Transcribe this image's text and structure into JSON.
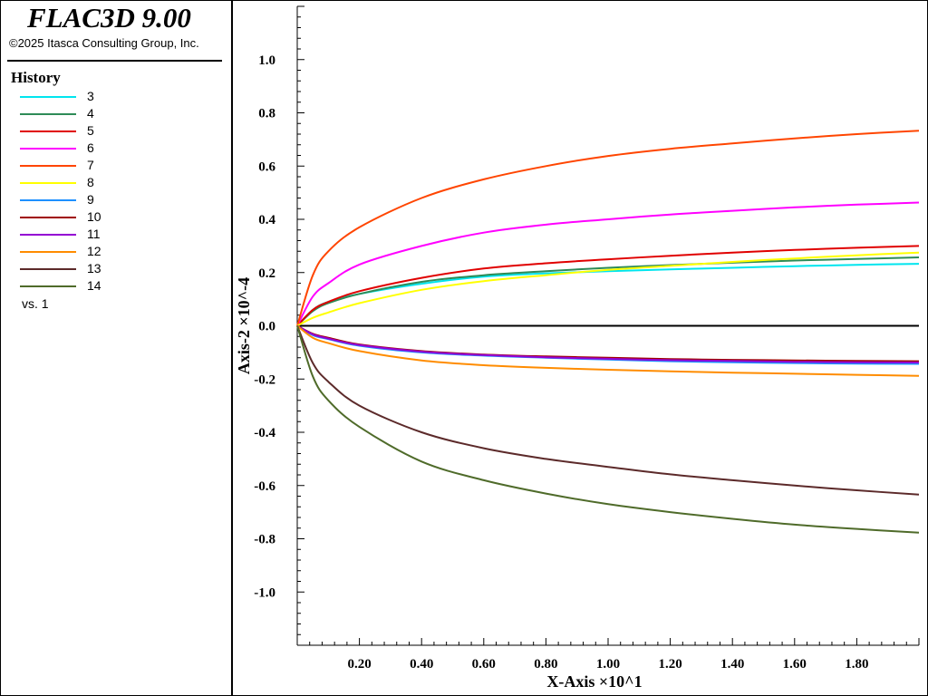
{
  "app": {
    "title": "FLAC3D 9.00",
    "copyright": "©2025 Itasca Consulting Group, Inc."
  },
  "legend": {
    "heading": "History",
    "vs_label": "vs. 1"
  },
  "chart_data": {
    "type": "line",
    "xlabel": "X-Axis ×10^1",
    "ylabel": "Axis-2 ×10^-4",
    "xlim": [
      0,
      2.0
    ],
    "ylim": [
      -1.2,
      1.2
    ],
    "x_ticks": [
      "0.20",
      "0.40",
      "0.60",
      "0.80",
      "1.00",
      "1.20",
      "1.40",
      "1.60",
      "1.80"
    ],
    "y_ticks": [
      "1.0",
      "0.8",
      "0.6",
      "0.4",
      "0.2",
      "0.0",
      "-0.2",
      "-0.4",
      "-0.6",
      "-0.8",
      "-1.0"
    ],
    "zero_line": true,
    "grid": false,
    "x": [
      0.0,
      0.05,
      0.1,
      0.2,
      0.4,
      0.6,
      0.8,
      1.0,
      1.2,
      1.4,
      1.6,
      1.8,
      2.0
    ],
    "series": [
      {
        "name": "3",
        "color": "#00e5ee",
        "values": [
          0,
          0.06,
          0.09,
          0.12,
          0.158,
          0.185,
          0.197,
          0.205,
          0.212,
          0.218,
          0.224,
          0.229,
          0.233
        ]
      },
      {
        "name": "4",
        "color": "#2e8b57",
        "values": [
          0,
          0.055,
          0.085,
          0.12,
          0.165,
          0.19,
          0.205,
          0.218,
          0.228,
          0.237,
          0.245,
          0.251,
          0.257
        ]
      },
      {
        "name": "5",
        "color": "#e00000",
        "values": [
          0,
          0.06,
          0.09,
          0.13,
          0.18,
          0.215,
          0.235,
          0.25,
          0.263,
          0.275,
          0.285,
          0.293,
          0.3
        ]
      },
      {
        "name": "6",
        "color": "#ff00ff",
        "values": [
          0,
          0.11,
          0.16,
          0.23,
          0.3,
          0.35,
          0.38,
          0.4,
          0.418,
          0.432,
          0.445,
          0.455,
          0.463
        ]
      },
      {
        "name": "7",
        "color": "#ff4500",
        "values": [
          0,
          0.19,
          0.28,
          0.37,
          0.48,
          0.55,
          0.6,
          0.638,
          0.665,
          0.685,
          0.704,
          0.72,
          0.733
        ]
      },
      {
        "name": "8",
        "color": "#ffff00",
        "values": [
          0,
          0.03,
          0.05,
          0.085,
          0.135,
          0.168,
          0.19,
          0.21,
          0.225,
          0.24,
          0.253,
          0.265,
          0.275
        ]
      },
      {
        "name": "9",
        "color": "#1e90ff",
        "values": [
          0,
          -0.035,
          -0.05,
          -0.075,
          -0.1,
          -0.112,
          -0.12,
          -0.127,
          -0.133,
          -0.137,
          -0.14,
          -0.142,
          -0.143
        ]
      },
      {
        "name": "10",
        "color": "#a00000",
        "values": [
          0,
          -0.03,
          -0.045,
          -0.07,
          -0.095,
          -0.108,
          -0.115,
          -0.12,
          -0.125,
          -0.128,
          -0.13,
          -0.132,
          -0.133
        ]
      },
      {
        "name": "11",
        "color": "#9400d3",
        "values": [
          0,
          -0.032,
          -0.048,
          -0.072,
          -0.097,
          -0.11,
          -0.118,
          -0.124,
          -0.129,
          -0.132,
          -0.135,
          -0.137,
          -0.138
        ]
      },
      {
        "name": "12",
        "color": "#ff8c00",
        "values": [
          0,
          -0.045,
          -0.065,
          -0.095,
          -0.13,
          -0.148,
          -0.158,
          -0.165,
          -0.171,
          -0.176,
          -0.18,
          -0.184,
          -0.188
        ]
      },
      {
        "name": "13",
        "color": "#5c2a2a",
        "values": [
          0,
          -0.14,
          -0.21,
          -0.3,
          -0.4,
          -0.46,
          -0.5,
          -0.53,
          -0.558,
          -0.58,
          -0.6,
          -0.618,
          -0.634
        ]
      },
      {
        "name": "14",
        "color": "#4f6b2a",
        "values": [
          0,
          -0.19,
          -0.28,
          -0.38,
          -0.51,
          -0.58,
          -0.63,
          -0.67,
          -0.7,
          -0.725,
          -0.747,
          -0.763,
          -0.777
        ]
      }
    ]
  }
}
